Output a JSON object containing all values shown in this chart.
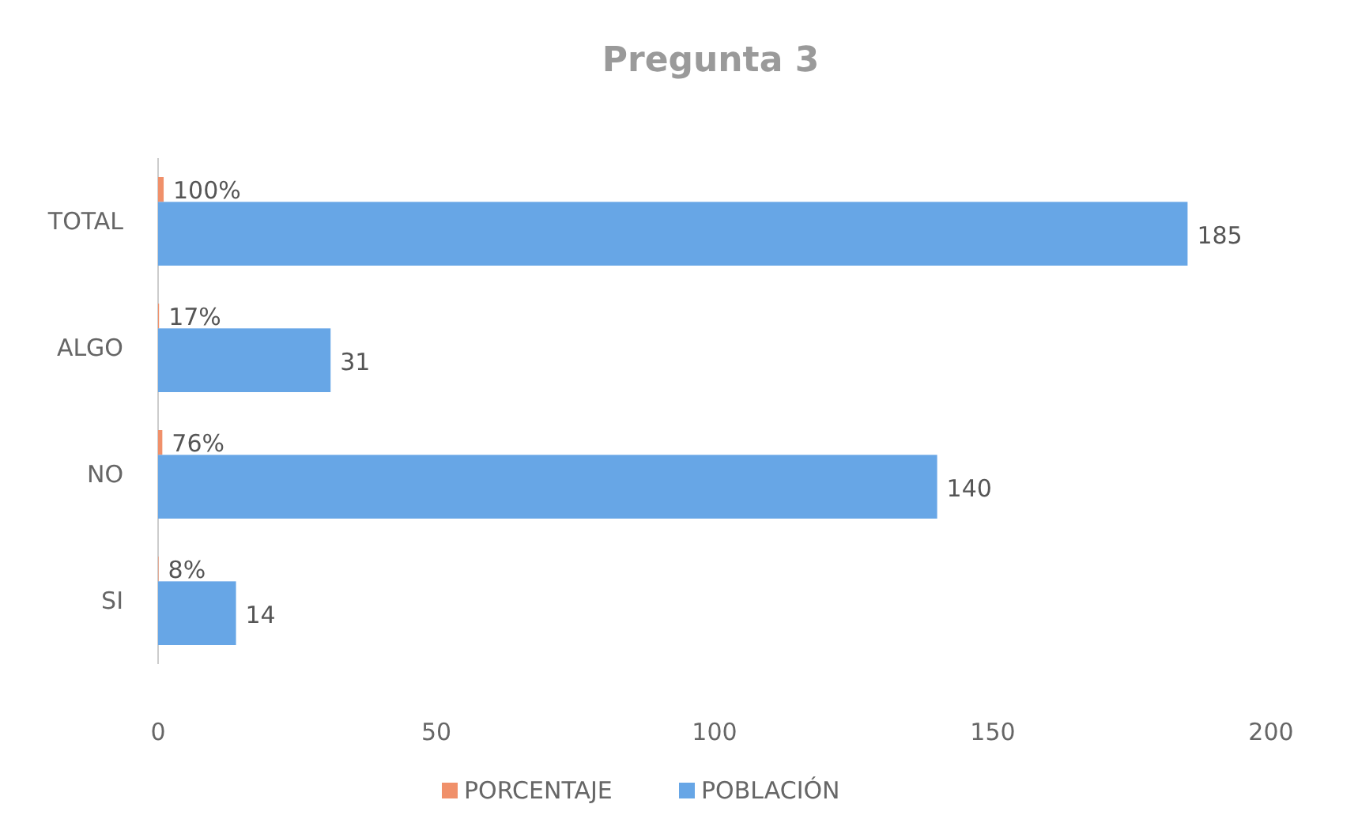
{
  "chart_data": {
    "type": "bar",
    "orientation": "horizontal",
    "title": "Pregunta 3",
    "categories": [
      "TOTAL",
      "ALGO",
      "NO",
      "SI"
    ],
    "series": [
      {
        "name": "PORCENTAJE",
        "color": "#f0906a",
        "values": [
          1,
          0.17,
          0.76,
          0.08
        ],
        "value_labels": [
          "100%",
          "17%",
          "76%",
          "8%"
        ]
      },
      {
        "name": "POBLACIÓN",
        "color": "#67a6e6",
        "values": [
          185,
          31,
          140,
          14
        ],
        "value_labels": [
          "185",
          "31",
          "140",
          "14"
        ]
      }
    ],
    "xlim": [
      0,
      200
    ],
    "xticks": [
      0,
      50,
      100,
      150,
      200
    ],
    "grid": false,
    "legend": "bottom"
  }
}
